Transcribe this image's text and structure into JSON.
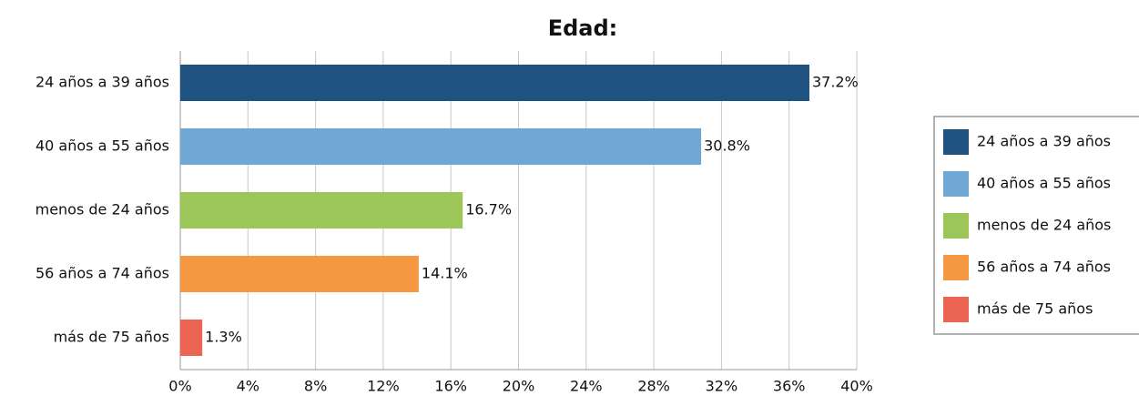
{
  "chart_data": {
    "type": "bar",
    "orientation": "horizontal",
    "title": "Edad:",
    "categories": [
      "24 años a 39 años",
      "40 años a 55 años",
      "menos de 24 años",
      "56 años a 74 años",
      "más de 75 años"
    ],
    "values": [
      37.2,
      30.8,
      16.7,
      14.1,
      1.3
    ],
    "value_labels": [
      "37.2%",
      "30.8%",
      "16.7%",
      "14.1%",
      "1.3%"
    ],
    "colors": [
      "#1f5281",
      "#6fa7d5",
      "#9cc658",
      "#f59842",
      "#ec6552"
    ],
    "xlim": [
      0,
      40
    ],
    "xticks": [
      {
        "value": 0,
        "label": "0%"
      },
      {
        "value": 4,
        "label": "4%"
      },
      {
        "value": 8,
        "label": "8%"
      },
      {
        "value": 12,
        "label": "12%"
      },
      {
        "value": 16,
        "label": "16%"
      },
      {
        "value": 20,
        "label": "20%"
      },
      {
        "value": 24,
        "label": "24%"
      },
      {
        "value": 28,
        "label": "28%"
      },
      {
        "value": 32,
        "label": "32%"
      },
      {
        "value": 36,
        "label": "36%"
      },
      {
        "value": 40,
        "label": "40%"
      }
    ],
    "grid": true,
    "legend": "right"
  }
}
